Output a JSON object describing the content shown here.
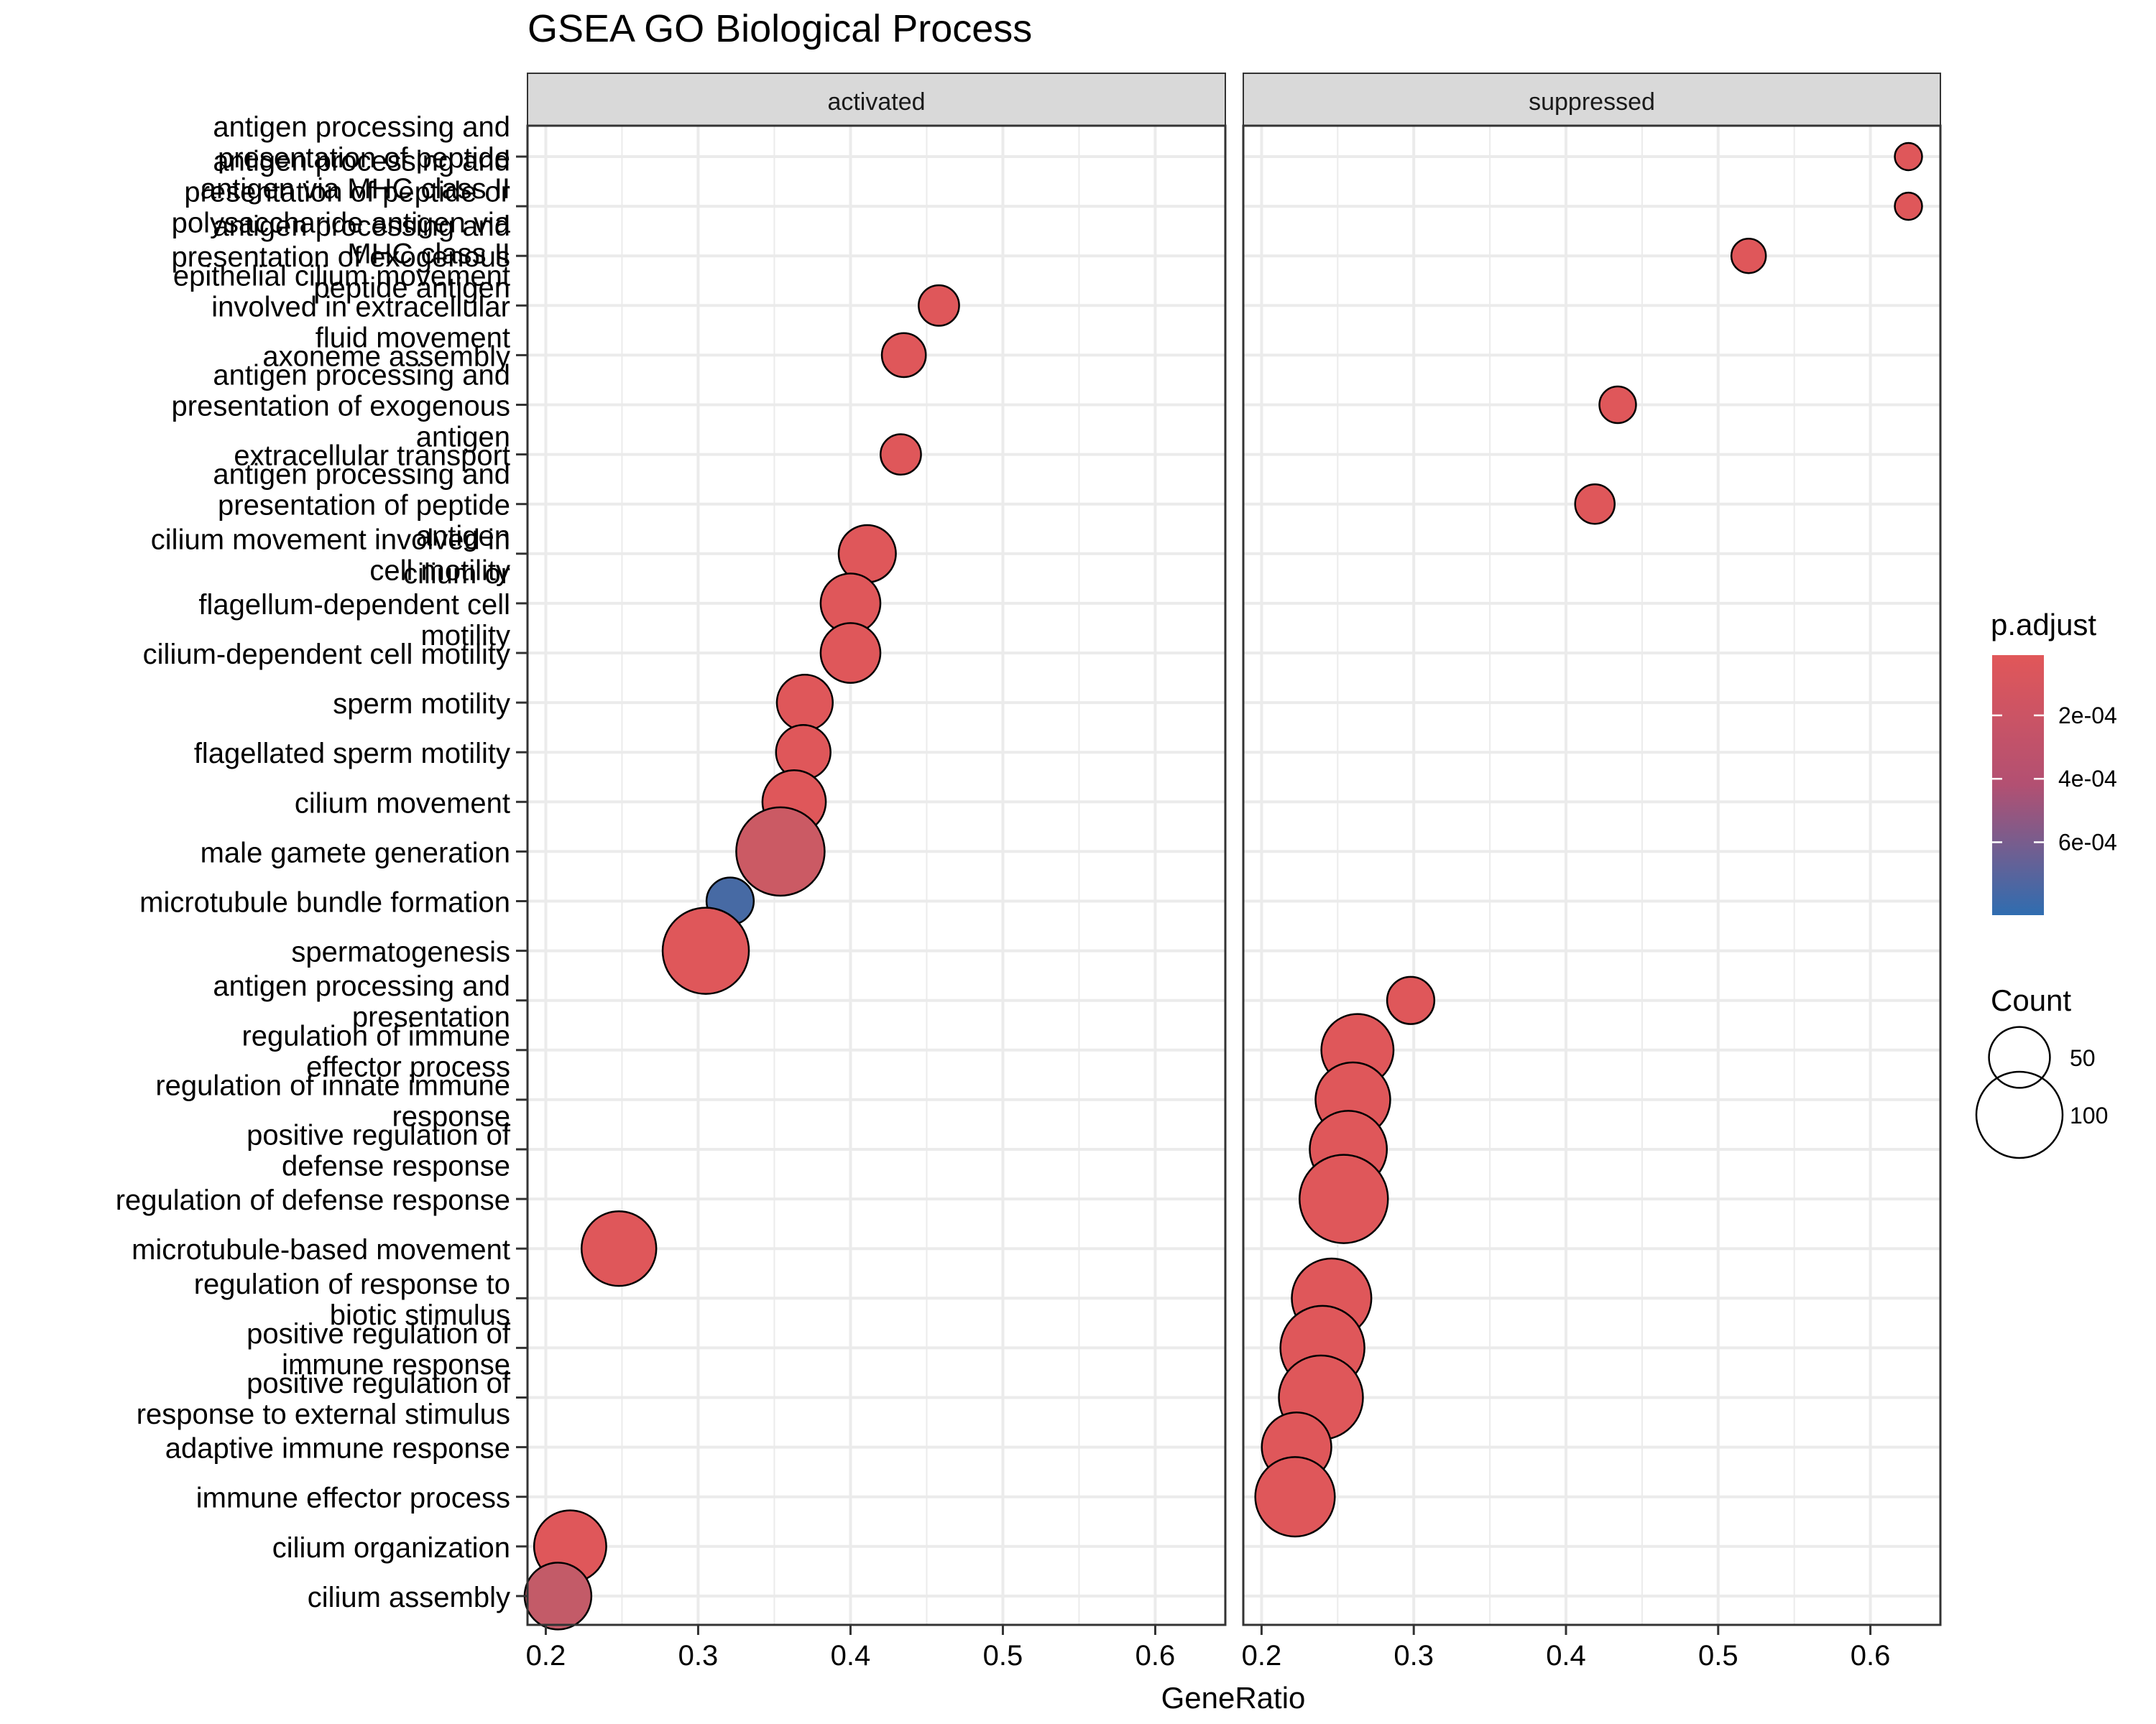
{
  "chart_data": {
    "type": "scatter",
    "title": "GSEA GO Biological Process",
    "xlabel": "GeneRatio",
    "ylabel": "",
    "xlim": [
      0.188,
      0.646
    ],
    "x_ticks": [
      "0.2",
      "0.3",
      "0.4",
      "0.5",
      "0.6"
    ],
    "grid": true,
    "legend_position": "right",
    "facets": [
      "activated",
      "suppressed"
    ],
    "categories": [
      [
        "antigen processing and",
        "presentation of peptide",
        "antigen via MHC class II"
      ],
      [
        "antigen processing and",
        "presentation of peptide or",
        "polysaccharide antigen via",
        "MHC class II"
      ],
      [
        "antigen processing and",
        "presentation of exogenous",
        "peptide antigen"
      ],
      [
        "epithelial cilium movement",
        "involved in extracellular",
        "fluid movement"
      ],
      [
        "axoneme assembly"
      ],
      [
        "antigen processing and",
        "presentation of exogenous",
        "antigen"
      ],
      [
        "extracellular transport"
      ],
      [
        "antigen processing and",
        "presentation of peptide",
        "antigen"
      ],
      [
        "cilium movement involved in",
        "cell motility"
      ],
      [
        "cilium or",
        "flagellum-dependent cell",
        "motility"
      ],
      [
        "cilium-dependent cell motility"
      ],
      [
        "sperm motility"
      ],
      [
        "flagellated sperm motility"
      ],
      [
        "cilium movement"
      ],
      [
        "male gamete generation"
      ],
      [
        "microtubule bundle formation"
      ],
      [
        "spermatogenesis"
      ],
      [
        "antigen processing and",
        "presentation"
      ],
      [
        "regulation of immune",
        "effector process"
      ],
      [
        "regulation of innate immune",
        "response"
      ],
      [
        "positive regulation of",
        "defense response"
      ],
      [
        "regulation of defense response"
      ],
      [
        "microtubule-based movement"
      ],
      [
        "regulation of response to",
        "biotic stimulus"
      ],
      [
        "positive regulation of",
        "immune response"
      ],
      [
        "positive regulation of",
        "response to external stimulus"
      ],
      [
        "adaptive immune response"
      ],
      [
        "immune effector process"
      ],
      [
        "cilium organization"
      ],
      [
        "cilium assembly"
      ]
    ],
    "points": [
      {
        "facet": "suppressed",
        "row": 0,
        "x": 0.625,
        "count": 10,
        "p_adjust": 2e-05
      },
      {
        "facet": "suppressed",
        "row": 1,
        "x": 0.625,
        "count": 10,
        "p_adjust": 2e-05
      },
      {
        "facet": "suppressed",
        "row": 2,
        "x": 0.52,
        "count": 16,
        "p_adjust": 2e-05
      },
      {
        "facet": "activated",
        "row": 3,
        "x": 0.458,
        "count": 22,
        "p_adjust": 2e-05
      },
      {
        "facet": "activated",
        "row": 4,
        "x": 0.435,
        "count": 26,
        "p_adjust": 2e-05
      },
      {
        "facet": "suppressed",
        "row": 5,
        "x": 0.434,
        "count": 18,
        "p_adjust": 2e-05
      },
      {
        "facet": "activated",
        "row": 6,
        "x": 0.433,
        "count": 22,
        "p_adjust": 2e-05
      },
      {
        "facet": "suppressed",
        "row": 7,
        "x": 0.419,
        "count": 21,
        "p_adjust": 2e-05
      },
      {
        "facet": "activated",
        "row": 8,
        "x": 0.411,
        "count": 44,
        "p_adjust": 2e-05
      },
      {
        "facet": "activated",
        "row": 9,
        "x": 0.4,
        "count": 48,
        "p_adjust": 2e-05
      },
      {
        "facet": "activated",
        "row": 10,
        "x": 0.4,
        "count": 48,
        "p_adjust": 2e-05
      },
      {
        "facet": "activated",
        "row": 11,
        "x": 0.37,
        "count": 42,
        "p_adjust": 2e-05
      },
      {
        "facet": "activated",
        "row": 12,
        "x": 0.369,
        "count": 40,
        "p_adjust": 2e-05
      },
      {
        "facet": "activated",
        "row": 13,
        "x": 0.363,
        "count": 54,
        "p_adjust": 2e-05
      },
      {
        "facet": "activated",
        "row": 14,
        "x": 0.354,
        "count": 105,
        "p_adjust": 0.00011
      },
      {
        "facet": "activated",
        "row": 15,
        "x": 0.321,
        "count": 30,
        "p_adjust": 0.00072
      },
      {
        "facet": "activated",
        "row": 16,
        "x": 0.305,
        "count": 100,
        "p_adjust": 2e-05
      },
      {
        "facet": "suppressed",
        "row": 17,
        "x": 0.298,
        "count": 30,
        "p_adjust": 2e-05
      },
      {
        "facet": "suppressed",
        "row": 18,
        "x": 0.263,
        "count": 70,
        "p_adjust": 2e-05
      },
      {
        "facet": "suppressed",
        "row": 19,
        "x": 0.26,
        "count": 75,
        "p_adjust": 2e-05
      },
      {
        "facet": "suppressed",
        "row": 20,
        "x": 0.257,
        "count": 80,
        "p_adjust": 2e-05
      },
      {
        "facet": "suppressed",
        "row": 21,
        "x": 0.254,
        "count": 105,
        "p_adjust": 2e-05
      },
      {
        "facet": "activated",
        "row": 22,
        "x": 0.248,
        "count": 75,
        "p_adjust": 2e-05
      },
      {
        "facet": "suppressed",
        "row": 23,
        "x": 0.246,
        "count": 85,
        "p_adjust": 2e-05
      },
      {
        "facet": "suppressed",
        "row": 24,
        "x": 0.24,
        "count": 95,
        "p_adjust": 2e-05
      },
      {
        "facet": "suppressed",
        "row": 25,
        "x": 0.239,
        "count": 95,
        "p_adjust": 2e-05
      },
      {
        "facet": "suppressed",
        "row": 26,
        "x": 0.223,
        "count": 65,
        "p_adjust": 2e-05
      },
      {
        "facet": "suppressed",
        "row": 27,
        "x": 0.222,
        "count": 85,
        "p_adjust": 2e-05
      },
      {
        "facet": "activated",
        "row": 28,
        "x": 0.216,
        "count": 70,
        "p_adjust": 2e-05
      },
      {
        "facet": "activated",
        "row": 29,
        "x": 0.208,
        "count": 60,
        "p_adjust": 0.00015
      }
    ],
    "color_legend": {
      "title": "p.adjust",
      "labels": [
        "2e-04",
        "4e-04",
        "6e-04"
      ],
      "values": [
        0.0002,
        0.0004,
        0.0006
      ],
      "range": [
        1e-05,
        0.00083
      ],
      "low_color": "#e15759",
      "high_color": "#2f6db0"
    },
    "size_legend": {
      "title": "Count",
      "labels": [
        "50",
        "100"
      ],
      "values": [
        50,
        100
      ]
    },
    "colors": {
      "strip_fill": "#d9d9d9",
      "grid": "#ebebeb",
      "panel_border": "#333333"
    }
  }
}
